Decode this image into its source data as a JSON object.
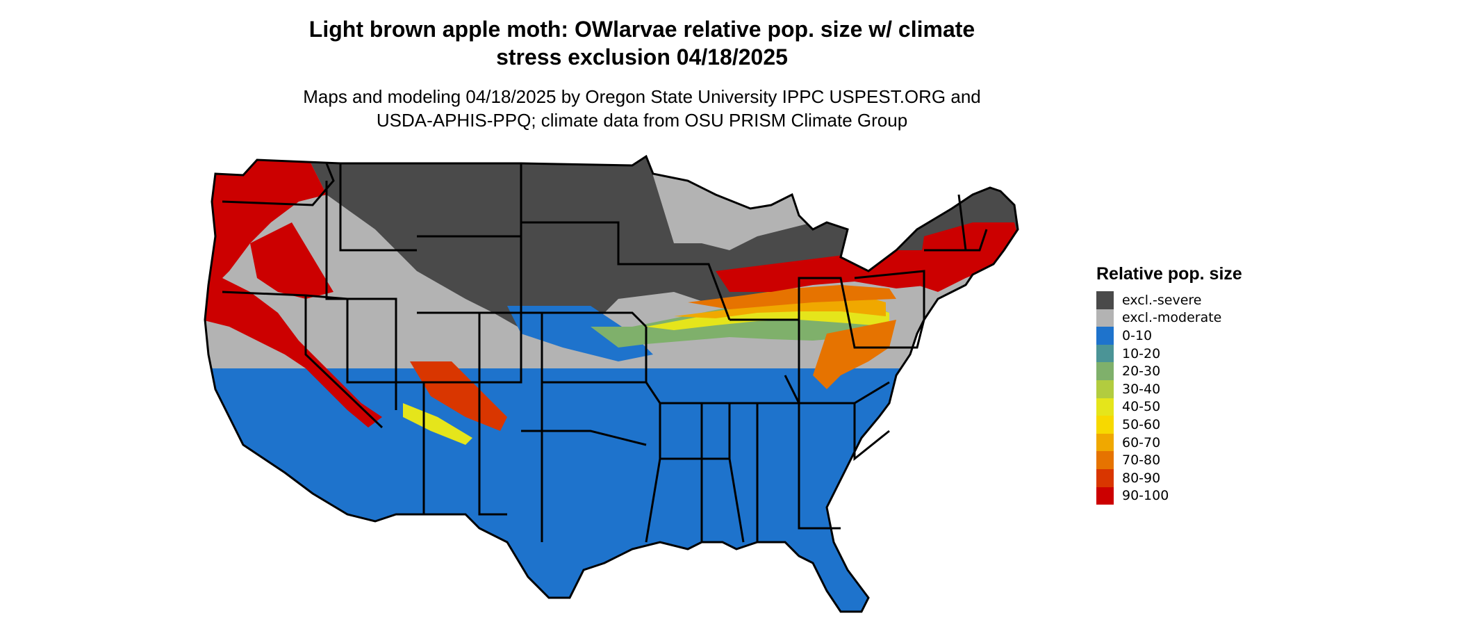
{
  "title_line1": "Light brown apple moth: OWlarvae relative pop. size w/ climate",
  "title_line2": "stress exclusion 04/18/2025",
  "subtitle_line1": "Maps and modeling 04/18/2025 by Oregon State University IPPC USPEST.ORG and",
  "subtitle_line2": "USDA-APHIS-PPQ; climate data from OSU PRISM Climate Group",
  "legend": {
    "title": "Relative pop. size",
    "items": [
      {
        "label": "excl.-severe",
        "color": "#4a4a4a"
      },
      {
        "label": "excl.-moderate",
        "color": "#b3b3b3"
      },
      {
        "label": "0-10",
        "color": "#1e73cc"
      },
      {
        "label": "10-20",
        "color": "#4b9496"
      },
      {
        "label": "20-30",
        "color": "#7fb06b"
      },
      {
        "label": "30-40",
        "color": "#b2cc3f"
      },
      {
        "label": "40-50",
        "color": "#e5e51b"
      },
      {
        "label": "50-60",
        "color": "#f7d900"
      },
      {
        "label": "60-70",
        "color": "#f0a800"
      },
      {
        "label": "70-80",
        "color": "#e67300"
      },
      {
        "label": "80-90",
        "color": "#d93600"
      },
      {
        "label": "90-100",
        "color": "#cc0000"
      }
    ]
  }
}
